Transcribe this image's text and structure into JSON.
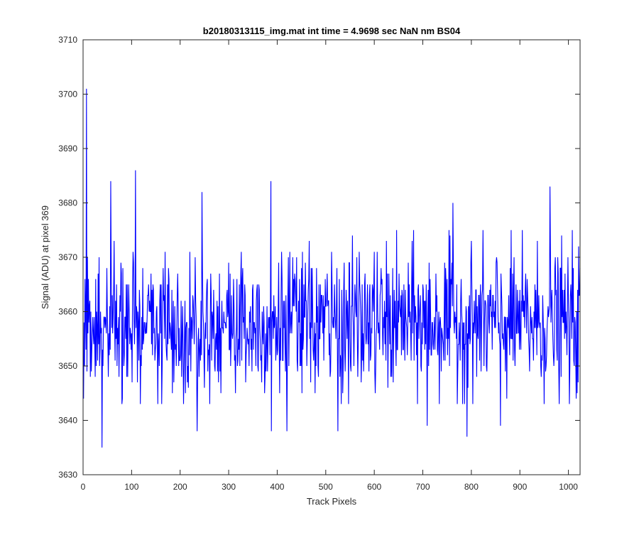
{
  "chart_data": {
    "type": "line",
    "title": "b20180313115_img.mat int time = 4.9698 sec  NaN nm BS04",
    "xlabel": "Track Pixels",
    "ylabel": "Signal (ADU) at pixel 369",
    "xlim": [
      0,
      1024
    ],
    "ylim": [
      3630,
      3710
    ],
    "xticks": [
      0,
      100,
      200,
      300,
      400,
      500,
      600,
      700,
      800,
      900,
      1000
    ],
    "yticks": [
      3630,
      3640,
      3650,
      3660,
      3670,
      3680,
      3690,
      3700,
      3710
    ],
    "grid": false,
    "series": [
      {
        "color": "#0000ff",
        "x_start": 1,
        "x_step": 1,
        "n_points": 1024,
        "baseline": 3658,
        "noise_std": 6.5,
        "features": [
          {
            "x": 7,
            "y": 3701
          },
          {
            "x": 39,
            "y": 3635
          },
          {
            "x": 57,
            "y": 3684
          },
          {
            "x": 108,
            "y": 3686
          },
          {
            "x": 235,
            "y": 3638
          },
          {
            "x": 245,
            "y": 3682
          },
          {
            "x": 387,
            "y": 3684
          },
          {
            "x": 388,
            "y": 3638
          },
          {
            "x": 420,
            "y": 3638
          },
          {
            "x": 525,
            "y": 3638
          },
          {
            "x": 709,
            "y": 3639
          },
          {
            "x": 762,
            "y": 3680
          },
          {
            "x": 791,
            "y": 3637
          },
          {
            "x": 860,
            "y": 3639
          },
          {
            "x": 962,
            "y": 3683
          }
        ]
      }
    ]
  }
}
